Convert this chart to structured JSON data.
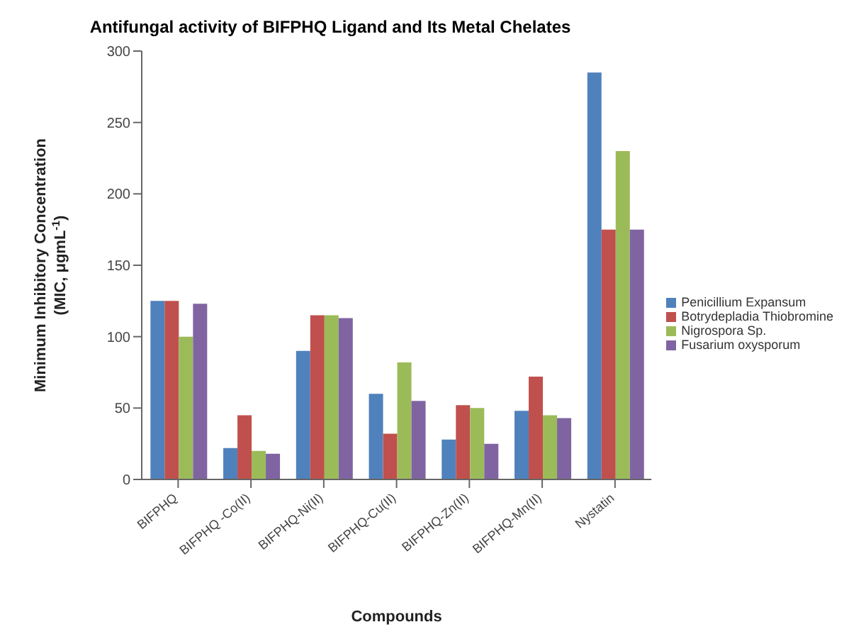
{
  "chart_data": {
    "type": "bar",
    "title": "Antifungal activity of BIFPHQ Ligand and Its Metal Chelates",
    "xlabel": "Compounds",
    "ylabel": "Minimum Inhibitory Concentration (MIC, μgmL$^{-1}$)",
    "categories": [
      "BIFPHQ",
      "BIFPHQ -Co(II)",
      "BIFPHQ-Ni(II)",
      "BIFPHQ-Cu(II)",
      "BIFPHQ-Zn(II)",
      "BIFPHQ-Mn(II)",
      "Nystatin"
    ],
    "series": [
      {
        "name": "Penicillium Expansum",
        "color": "#4f81bd",
        "values": [
          125,
          22,
          90,
          60,
          28,
          48,
          285
        ]
      },
      {
        "name": "Botrydepladia Thiobromine",
        "color": "#c0504d",
        "values": [
          125,
          45,
          115,
          32,
          52,
          72,
          175
        ]
      },
      {
        "name": "Nigrospora Sp.",
        "color": "#9bbb59",
        "values": [
          100,
          20,
          115,
          82,
          50,
          45,
          230
        ]
      },
      {
        "name": "Fusarium oxysporum",
        "color": "#8064a2",
        "values": [
          123,
          18,
          113,
          55,
          25,
          43,
          175
        ]
      }
    ],
    "ylim": [
      0,
      300
    ],
    "yticks": [
      0,
      50,
      100,
      150,
      200,
      250,
      300
    ],
    "grid": false,
    "legend": "right"
  }
}
